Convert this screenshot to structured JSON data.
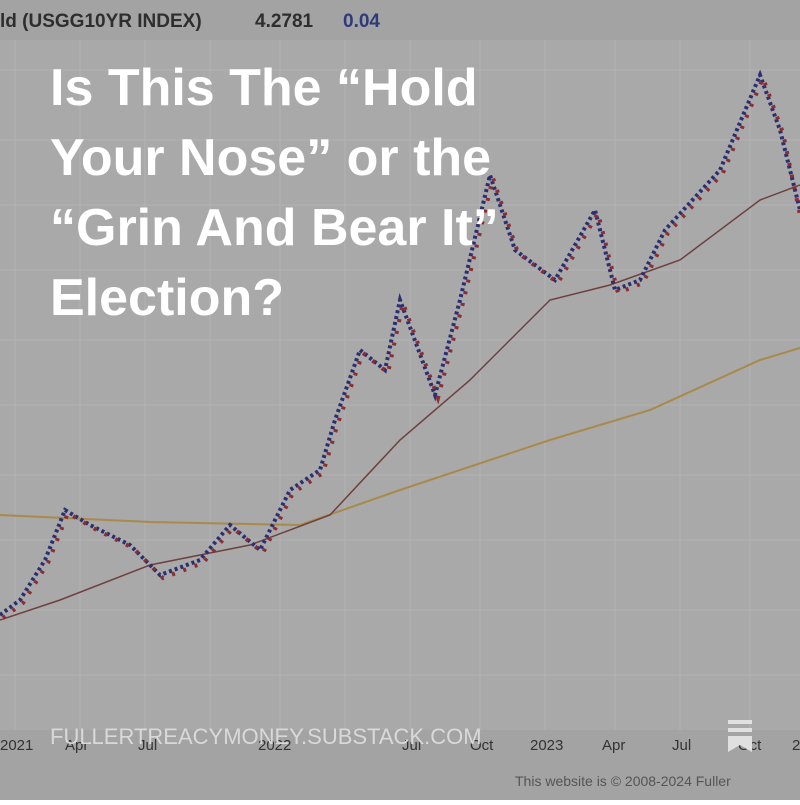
{
  "header": {
    "ticker": "ld (USGG10YR INDEX)",
    "price": "4.2781",
    "change": "0.04"
  },
  "title_lines": [
    "Is This The “Hold",
    "Your Nose” or the",
    "“Grin And Bear It”",
    "Election?"
  ],
  "x_axis_labels": [
    "2021",
    "Apr",
    "Jul",
    "2022",
    "Jul",
    "Oct",
    "2023",
    "Apr",
    "Jul",
    "Oct",
    "2"
  ],
  "site": "FULLERTREACYMONEY.SUBSTACK.COM",
  "footer": "This website is © 2008-2024 Fuller"
}
